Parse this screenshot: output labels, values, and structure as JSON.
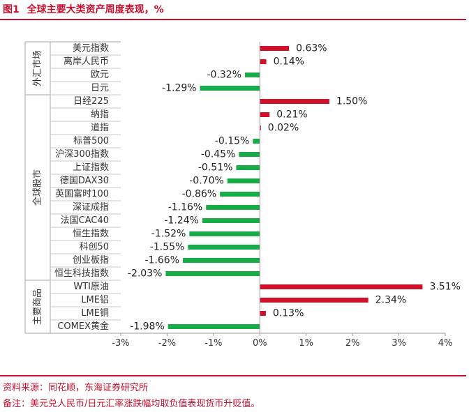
{
  "header": {
    "figure_label": "图1",
    "title": "全球主要大类资产周度表现，%"
  },
  "footer": {
    "source": "资料来源：同花顺，东海证券研究所",
    "note": "备注：美元兑人民币/日元汇率涨跌幅均取负值表现货币升贬值。"
  },
  "chart_data": {
    "type": "bar",
    "orientation": "horizontal",
    "xlim": [
      -3,
      4
    ],
    "xticks": [
      -3,
      -2,
      -1,
      0,
      1,
      2,
      3,
      4
    ],
    "tick_suffix": "%",
    "grid": false,
    "colors": {
      "positive": "#d0112b",
      "negative": "#17ac48"
    },
    "groups": [
      {
        "name": "外汇市场",
        "start": 0,
        "end": 3
      },
      {
        "name": "全球股市",
        "start": 4,
        "end": 17
      },
      {
        "name": "主要商品",
        "start": 18,
        "end": 21
      }
    ],
    "categories": [
      "美元指数",
      "离岸人民币",
      "欧元",
      "日元",
      "日经225",
      "纳指",
      "道指",
      "标普500",
      "沪深300指数",
      "上证指数",
      "德国DAX30",
      "英国富时100",
      "深证成指",
      "法国CAC40",
      "恒生指数",
      "科创50",
      "创业板指",
      "恒生科技指数",
      "WTI原油",
      "LME铝",
      "LME铜",
      "COMEX黄金"
    ],
    "values": [
      0.63,
      0.14,
      -0.32,
      -1.29,
      1.5,
      0.21,
      0.02,
      -0.15,
      -0.45,
      -0.51,
      -0.7,
      -0.86,
      -1.16,
      -1.24,
      -1.52,
      -1.55,
      -1.66,
      -2.03,
      3.51,
      2.34,
      0.13,
      -1.98
    ],
    "labels": [
      "0.63%",
      "0.14%",
      "-0.32%",
      "-1.29%",
      "1.50%",
      "0.21%",
      "0.02%",
      "-0.15%",
      "-0.45%",
      "-0.51%",
      "-0.70%",
      "-0.86%",
      "-1.16%",
      "-1.24%",
      "-1.52%",
      "-1.55%",
      "-1.66%",
      "-2.03%",
      "3.51%",
      "2.34%",
      "0.13%",
      "-1.98%"
    ]
  }
}
